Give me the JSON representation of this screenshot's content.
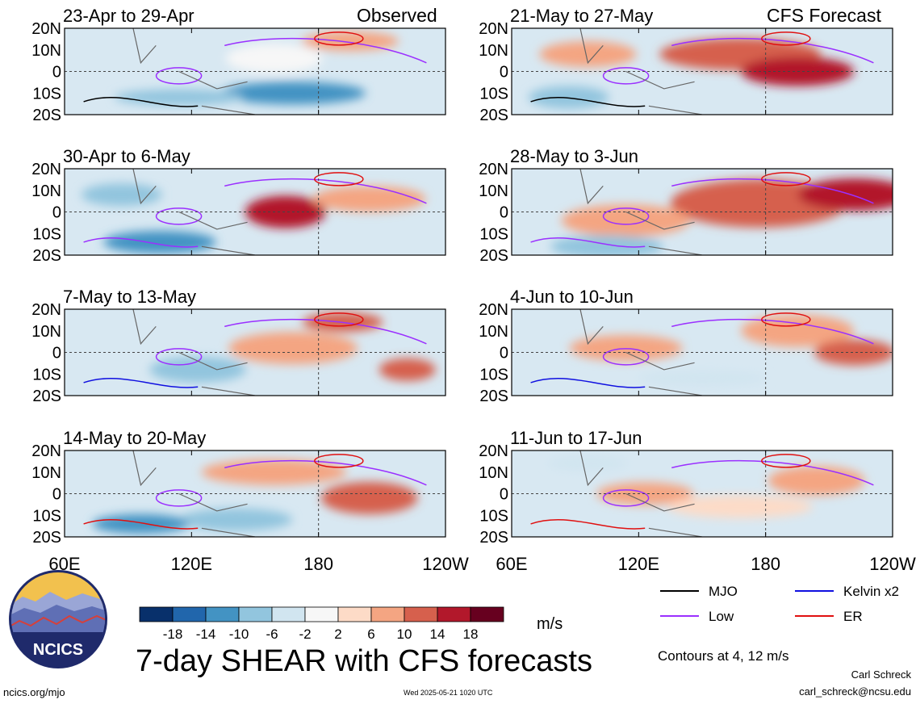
{
  "figure": {
    "main_title": "7-day SHEAR with CFS forecasts",
    "left_column_label": "Observed",
    "right_column_label": "CFS Forecast",
    "units": "m/s",
    "contour_note": "Contours at 4, 12 m/s",
    "author": "Carl Schreck",
    "email": "carl_schreck@ncsu.edu",
    "site": "ncics.org/mjo",
    "timestamp": "Wed 2025-05-21 1020 UTC",
    "logo_text": "NCICS"
  },
  "chart_data": {
    "type": "heatmap",
    "variable": "7-day SHEAR",
    "units": "m/s",
    "x_ticks": [
      "60E",
      "120E",
      "180",
      "120W"
    ],
    "y_ticks": [
      "20N",
      "10N",
      "0",
      "10S",
      "20S"
    ],
    "panels": [
      {
        "period": "23-Apr to 29-Apr",
        "source": "Observed"
      },
      {
        "period": "30-Apr to 6-May",
        "source": "Observed"
      },
      {
        "period": "7-May to 13-May",
        "source": "Observed"
      },
      {
        "period": "14-May to 20-May",
        "source": "Observed"
      },
      {
        "period": "21-May to 27-May",
        "source": "CFS Forecast"
      },
      {
        "period": "28-May to 3-Jun",
        "source": "CFS Forecast"
      },
      {
        "period": "4-Jun to 10-Jun",
        "source": "CFS Forecast"
      },
      {
        "period": "11-Jun to 17-Jun",
        "source": "CFS Forecast"
      }
    ],
    "colorbar": {
      "tick_labels": [
        "-18",
        "-14",
        "-10",
        "-6",
        "-2",
        "2",
        "6",
        "10",
        "14",
        "18"
      ],
      "colors": [
        "#08306b",
        "#2166ac",
        "#4393c3",
        "#92c5de",
        "#d1e5f0",
        "#f7f7f7",
        "#fddbc7",
        "#f4a582",
        "#d6604d",
        "#b2182b",
        "#67001f"
      ]
    },
    "legend": [
      {
        "label": "MJO",
        "color": "#000000"
      },
      {
        "label": "Kelvin x2",
        "color": "#1010e0"
      },
      {
        "label": "Low",
        "color": "#9b30ff"
      },
      {
        "label": "ER",
        "color": "#e01010"
      }
    ]
  }
}
